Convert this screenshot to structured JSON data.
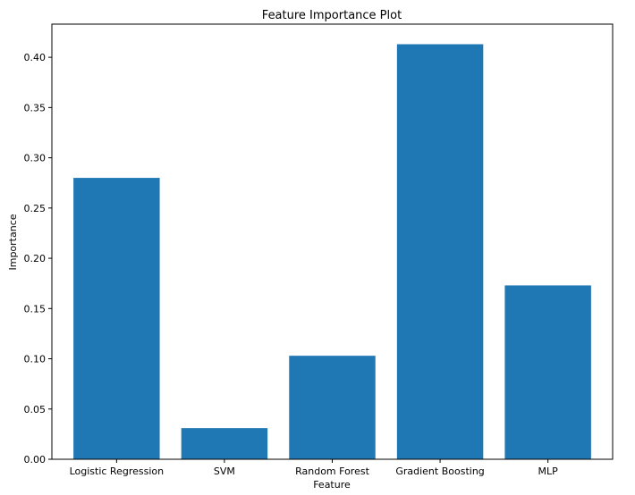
{
  "chart_data": {
    "type": "bar",
    "title": "Feature Importance Plot",
    "xlabel": "Feature",
    "ylabel": "Importance",
    "categories": [
      "Logistic Regression",
      "SVM",
      "Random Forest",
      "Gradient Boosting",
      "MLP"
    ],
    "values": [
      0.28,
      0.031,
      0.103,
      0.413,
      0.173
    ],
    "ylim": [
      0,
      0.433
    ],
    "yticks": [
      0.0,
      0.05,
      0.1,
      0.15,
      0.2,
      0.25,
      0.3,
      0.35,
      0.4
    ],
    "ytick_labels": [
      "0.00",
      "0.05",
      "0.10",
      "0.15",
      "0.20",
      "0.25",
      "0.30",
      "0.35",
      "0.40"
    ],
    "bar_color": "#1f77b4",
    "grid": false,
    "legend": false
  }
}
